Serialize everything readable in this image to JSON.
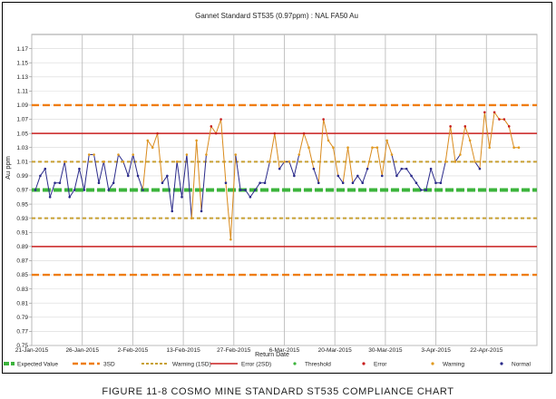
{
  "chart_data": {
    "type": "line",
    "title": "Gannet Standard ST535 (0.97ppm) : NAL FA50 Au",
    "xlabel": "Return Date",
    "ylabel": "Au ppm",
    "ylim": [
      0.75,
      1.19
    ],
    "yticks": [
      "0.75",
      "0.77",
      "0.79",
      "0.81",
      "0.83",
      "0.85",
      "0.87",
      "0.89",
      "0.91",
      "0.93",
      "0.95",
      "0.97",
      "0.99",
      "1.01",
      "1.03",
      "1.05",
      "1.07",
      "1.09",
      "1.11",
      "1.13",
      "1.15",
      "1.17"
    ],
    "x_tick_labels": [
      "21-Jan-2015",
      "26-Jan-2015",
      "2-Feb-2015",
      "13-Feb-2015",
      "27-Feb-2015",
      "6-Mar-2015",
      "20-Mar-2015",
      "30-Mar-2015",
      "3-Apr-2015",
      "22-Apr-2015"
    ],
    "grid": true,
    "legend_position": "bottom",
    "reference_lines": [
      {
        "name": "Expected Value",
        "value": 0.97,
        "color": "#3cb43c",
        "style": "dash-thick"
      },
      {
        "name": "3SD",
        "value": 1.09,
        "color": "#ef7d10",
        "style": "dash"
      },
      {
        "name": "3SD",
        "value": 0.85,
        "color": "#ef7d10",
        "style": "dash"
      },
      {
        "name": "Warning (1SD)",
        "value": 1.01,
        "color": "#c8a032",
        "style": "dash-small"
      },
      {
        "name": "Warning (1SD)",
        "value": 0.93,
        "color": "#c8a032",
        "style": "dash-small"
      },
      {
        "name": "Error (2SD)",
        "value": 1.05,
        "color": "#c81e1e",
        "style": "solid"
      },
      {
        "name": "Error (2SD)",
        "value": 0.89,
        "color": "#c81e1e",
        "style": "solid"
      }
    ],
    "series": [
      {
        "name": "Au ppm",
        "color": "#2a2a8a",
        "values": [
          0.97,
          0.99,
          1.0,
          0.96,
          0.98,
          0.98,
          1.01,
          0.96,
          0.97,
          1.0,
          0.97,
          1.02,
          1.02,
          0.98,
          1.01,
          0.97,
          0.98,
          1.02,
          1.01,
          0.99,
          1.02,
          0.99,
          0.97,
          1.04,
          1.03,
          1.05,
          0.98,
          0.99,
          0.94,
          1.01,
          0.96,
          1.02,
          0.93,
          1.04,
          0.94,
          1.02,
          1.06,
          1.05,
          1.07,
          0.98,
          0.9,
          1.02,
          0.97,
          0.97,
          0.96,
          0.97,
          0.98,
          0.98,
          1.01,
          1.05,
          1.0,
          1.01,
          1.01,
          0.99,
          1.02,
          1.05,
          1.03,
          1.0,
          0.98,
          1.07,
          1.04,
          1.03,
          0.99,
          0.98,
          1.03,
          0.98,
          0.99,
          0.98,
          1.0,
          1.03,
          1.03,
          0.99,
          1.04,
          1.02,
          0.99,
          1.0,
          1.0,
          0.99,
          0.98,
          0.97,
          0.97,
          1.0,
          0.98,
          0.98,
          1.01,
          1.06,
          1.01,
          1.02,
          1.06,
          1.04,
          1.01,
          1.0,
          1.08,
          1.03,
          1.08,
          1.07,
          1.07,
          1.06,
          1.03,
          1.03
        ]
      }
    ],
    "legend": [
      {
        "label": "Expected Value",
        "color": "#3cb43c",
        "kind": "line-thick"
      },
      {
        "label": "3SD",
        "color": "#ef7d10",
        "kind": "line-dash"
      },
      {
        "label": "Warning (1SD)",
        "color": "#c8a032",
        "kind": "line-dash-small"
      },
      {
        "label": "Error (2SD)",
        "color": "#c81e1e",
        "kind": "line"
      },
      {
        "label": "Threshold",
        "color": "#3cb43c",
        "kind": "dot"
      },
      {
        "label": "Error",
        "color": "#c81e1e",
        "kind": "dot"
      },
      {
        "label": "Warning",
        "color": "#e09a20",
        "kind": "dot"
      },
      {
        "label": "Normal",
        "color": "#2a2a8a",
        "kind": "dot"
      }
    ]
  },
  "caption": "FIGURE 11-8 COSMO MINE STANDARD ST535 COMPLIANCE CHART"
}
